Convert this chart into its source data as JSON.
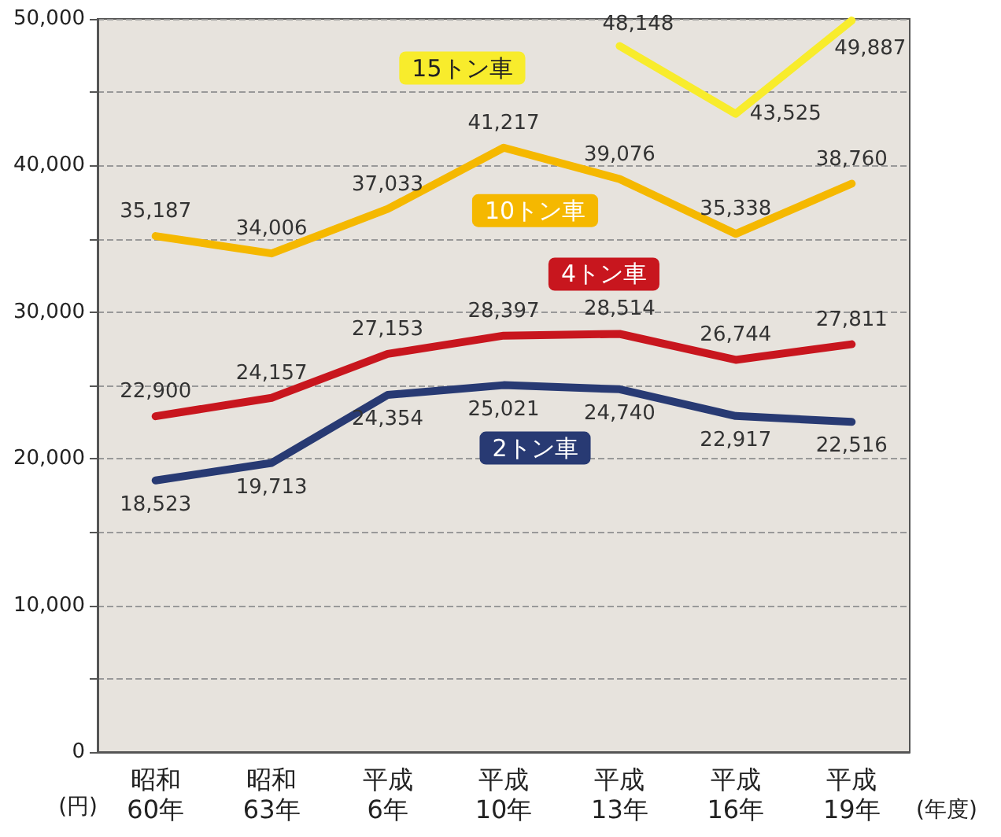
{
  "chart_data": {
    "type": "line",
    "categories": [
      "昭和\n60年",
      "昭和\n63年",
      "平成\n6年",
      "平成\n10年",
      "平成\n13年",
      "平成\n16年",
      "平成\n19年"
    ],
    "series": [
      {
        "name": "15トン車",
        "color": "#f8ec2c",
        "values": [
          null,
          null,
          null,
          null,
          48148,
          43525,
          49887
        ],
        "value_labels": [
          null,
          null,
          null,
          null,
          "48,148",
          "43,525",
          "49,887"
        ]
      },
      {
        "name": "10トン車",
        "color": "#f5b800",
        "values": [
          35187,
          34006,
          37033,
          41217,
          39076,
          35338,
          38760
        ],
        "value_labels": [
          "35,187",
          "34,006",
          "37,033",
          "41,217",
          "39,076",
          "35,338",
          "38,760"
        ]
      },
      {
        "name": "4トン車",
        "color": "#c8161e",
        "values": [
          22900,
          24157,
          27153,
          28397,
          28514,
          26744,
          27811
        ],
        "value_labels": [
          "22,900",
          "24,157",
          "27,153",
          "28,397",
          "28,514",
          "26,744",
          "27,811"
        ]
      },
      {
        "name": "2トン車",
        "color": "#283a73",
        "values": [
          18523,
          19713,
          24354,
          25021,
          24740,
          22917,
          22516
        ],
        "value_labels": [
          "18,523",
          "19,713",
          "24,354",
          "25,021",
          "24,740",
          "22,917",
          "22,516"
        ]
      }
    ],
    "ylim": [
      0,
      50000
    ],
    "yticks": [
      {
        "value": 0,
        "label": "0"
      },
      {
        "value": 5000,
        "label": null
      },
      {
        "value": 10000,
        "label": "10,000"
      },
      {
        "value": 15000,
        "label": null
      },
      {
        "value": 20000,
        "label": "20,000"
      },
      {
        "value": 25000,
        "label": null
      },
      {
        "value": 30000,
        "label": "30,000"
      },
      {
        "value": 35000,
        "label": null
      },
      {
        "value": 40000,
        "label": "40,000"
      },
      {
        "value": 45000,
        "label": null
      },
      {
        "value": 50000,
        "label": "50,000"
      }
    ],
    "ylabel": "(円)",
    "xlabel": "(年度)",
    "grid": "y",
    "legend": false,
    "marker": "none",
    "line_style": "solid"
  }
}
